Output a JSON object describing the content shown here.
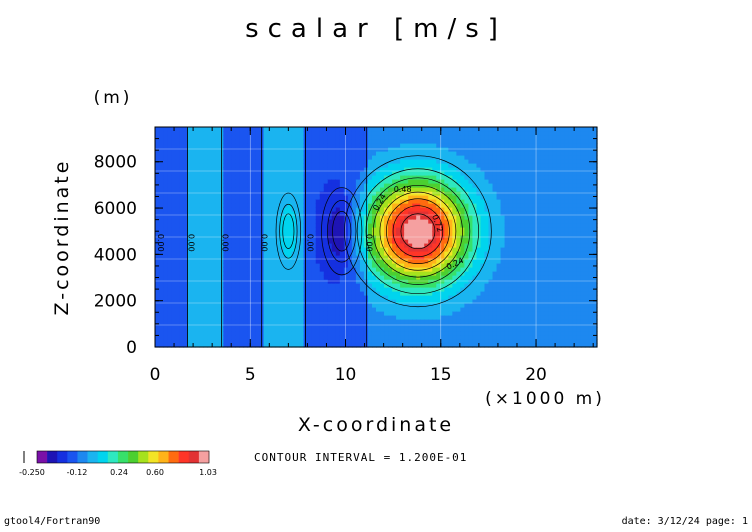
{
  "chart_data": {
    "type": "heatmap",
    "title": "scalar [m/s]",
    "xlabel": "X-coordinate",
    "ylabel": "Z-coordinate",
    "xunit": "(×1000 m)",
    "yunit": "(m)",
    "xlim": [
      0,
      23.2
    ],
    "ylim": [
      0,
      9500
    ],
    "xticks": [
      0,
      5,
      10,
      15,
      20
    ],
    "xtick_labels": [
      "0",
      "5",
      "10",
      "15",
      "20"
    ],
    "yticks": [
      0,
      2000,
      4000,
      6000,
      8000
    ],
    "ytick_labels": [
      "0",
      "2000",
      "4000",
      "6000",
      "8000"
    ],
    "contour_interval_text": "CONTOUR INTERVAL = 1.200E-01",
    "contour_labels": [
      "0.48",
      "0.24",
      "0.72",
      "0.24",
      "0.00",
      "0.00",
      "0.00",
      "0.00",
      "0.00",
      "0.00"
    ],
    "colorbar": {
      "labels": [
        "-0.250",
        "-0.12",
        "0.24",
        "0.60",
        "1.03"
      ],
      "colors": [
        "#7a11a8",
        "#1e14b5",
        "#1530e0",
        "#1a55f0",
        "#1d88f0",
        "#1ab4f0",
        "#00d4ee",
        "#2ee8c0",
        "#37e06a",
        "#4ccf30",
        "#a6e21e",
        "#f2e426",
        "#ffb319",
        "#ff6b10",
        "#ff3528",
        "#e23233",
        "#f5a0a0"
      ]
    },
    "field": {
      "background": 0.08,
      "structures": [
        {
          "kind": "vertical_band",
          "x_from": 1.7,
          "x_to": 3.5,
          "value": 0.14
        },
        {
          "kind": "vertical_band",
          "x_from": 5.6,
          "x_to": 7.9,
          "value": 0.14
        },
        {
          "kind": "vertical_band",
          "x_from": 0.0,
          "x_to": 1.7,
          "value": -0.02
        },
        {
          "kind": "vertical_band",
          "x_from": 3.5,
          "x_to": 5.6,
          "value": -0.02
        },
        {
          "kind": "vertical_band",
          "x_from": 7.9,
          "x_to": 11.1,
          "value": -0.02
        },
        {
          "kind": "peak",
          "x": 7.0,
          "z": 5000,
          "value": 0.26
        },
        {
          "kind": "peak",
          "x": 9.8,
          "z": 5000,
          "value": -0.25
        },
        {
          "kind": "peak",
          "x": 13.8,
          "z": 5000,
          "value": 1.03
        }
      ]
    },
    "grid": true,
    "legend": "bottom-left"
  },
  "footer": {
    "left": "gtool4/Fortran90",
    "right": "date: 3/12/24 page: 1"
  }
}
